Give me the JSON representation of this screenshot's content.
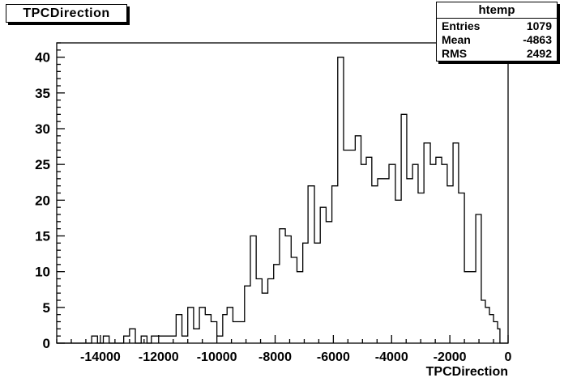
{
  "canvas": {
    "background": "#ffffff",
    "line_color": "#000000"
  },
  "title_box": {
    "text": "TPCDirection"
  },
  "stats_box": {
    "title": "htemp",
    "rows": [
      {
        "label": "Entries",
        "value": "1079"
      },
      {
        "label": "Mean",
        "value": "-4863"
      },
      {
        "label": "RMS",
        "value": "2492"
      }
    ]
  },
  "chart_data": {
    "type": "bar",
    "title": "TPCDirection",
    "xlabel": "TPCDirection",
    "ylabel": "",
    "xlim": [
      -15500,
      0
    ],
    "ylim": [
      0,
      42
    ],
    "x_major_tick_step": 2000,
    "x_major_ticks": [
      -14000,
      -12000,
      -10000,
      -8000,
      -6000,
      -4000,
      -2000,
      0
    ],
    "x_minor_step": 500,
    "y_major_tick_step": 5,
    "y_major_ticks": [
      0,
      5,
      10,
      15,
      20,
      25,
      30,
      35,
      40
    ],
    "y_minor_step": 1,
    "grid": false,
    "legend": "none",
    "line_color": "#000000",
    "steps_comment": "histogram step segments as [x_from, x_to, count]; regions not listed are 0",
    "steps": [
      [
        -14300,
        -14100,
        1
      ],
      [
        -13900,
        -13700,
        1
      ],
      [
        -13200,
        -13000,
        1
      ],
      [
        -13000,
        -12800,
        2
      ],
      [
        -12600,
        -12400,
        1
      ],
      [
        -12250,
        -12050,
        1
      ],
      [
        -12050,
        -11400,
        1
      ],
      [
        -11400,
        -11200,
        4
      ],
      [
        -11200,
        -11000,
        1
      ],
      [
        -11000,
        -10800,
        5
      ],
      [
        -10800,
        -10600,
        2
      ],
      [
        -10600,
        -10400,
        5
      ],
      [
        -10400,
        -10200,
        4
      ],
      [
        -10200,
        -10000,
        3
      ],
      [
        -10000,
        -9800,
        1
      ],
      [
        -9800,
        -9650,
        4
      ],
      [
        -9650,
        -9450,
        5
      ],
      [
        -9450,
        -9050,
        3
      ],
      [
        -9050,
        -8850,
        8
      ],
      [
        -8850,
        -8650,
        15
      ],
      [
        -8650,
        -8450,
        9
      ],
      [
        -8450,
        -8250,
        7
      ],
      [
        -8250,
        -8050,
        9
      ],
      [
        -8050,
        -7850,
        11
      ],
      [
        -7850,
        -7650,
        16
      ],
      [
        -7650,
        -7450,
        15
      ],
      [
        -7450,
        -7250,
        12
      ],
      [
        -7250,
        -7050,
        10
      ],
      [
        -7050,
        -6870,
        14
      ],
      [
        -6870,
        -6650,
        22
      ],
      [
        -6650,
        -6450,
        14
      ],
      [
        -6450,
        -6250,
        19
      ],
      [
        -6250,
        -6050,
        17
      ],
      [
        -6050,
        -5850,
        22
      ],
      [
        -5850,
        -5650,
        40
      ],
      [
        -5650,
        -5250,
        27
      ],
      [
        -5250,
        -5050,
        29
      ],
      [
        -5050,
        -4870,
        25
      ],
      [
        -4870,
        -4680,
        26
      ],
      [
        -4680,
        -4480,
        22
      ],
      [
        -4480,
        -4090,
        23
      ],
      [
        -4090,
        -3870,
        25
      ],
      [
        -3870,
        -3670,
        20
      ],
      [
        -3670,
        -3480,
        32
      ],
      [
        -3480,
        -3280,
        23
      ],
      [
        -3280,
        -3090,
        25
      ],
      [
        -3090,
        -2890,
        21
      ],
      [
        -2890,
        -2670,
        28
      ],
      [
        -2670,
        -2480,
        25
      ],
      [
        -2480,
        -2280,
        26
      ],
      [
        -2280,
        -2090,
        25
      ],
      [
        -2090,
        -1890,
        22
      ],
      [
        -1890,
        -1700,
        28
      ],
      [
        -1700,
        -1500,
        21
      ],
      [
        -1500,
        -1110,
        10
      ],
      [
        -1110,
        -920,
        18
      ],
      [
        -920,
        -780,
        6
      ],
      [
        -780,
        -640,
        5
      ],
      [
        -640,
        -500,
        4
      ],
      [
        -500,
        -360,
        3
      ],
      [
        -360,
        -280,
        2
      ]
    ]
  }
}
